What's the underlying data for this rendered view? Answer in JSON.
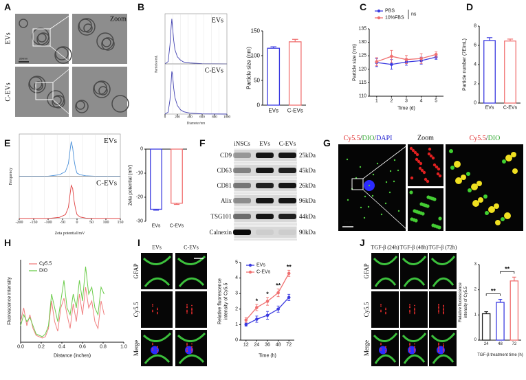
{
  "panel_labels": [
    "A",
    "B",
    "C",
    "D",
    "E",
    "F",
    "G",
    "H",
    "I",
    "J"
  ],
  "panel_a": {
    "row_labels": [
      "EVs",
      "C-EVs"
    ],
    "zoom_label": "Zoom",
    "scale_bar": "200nm"
  },
  "panel_f": {
    "columns": [
      "iNSCs",
      "EVs",
      "C-EVs"
    ],
    "rows": [
      {
        "protein": "CD9",
        "size": "25kDa"
      },
      {
        "protein": "CD63",
        "size": "45kDa"
      },
      {
        "protein": "CD81",
        "size": "26kDa"
      },
      {
        "protein": "Alix",
        "size": "96kDa"
      },
      {
        "protein": "TSG101",
        "size": "44kDa"
      },
      {
        "protein": "Calnexin",
        "size": "90kDa"
      }
    ]
  },
  "panel_g": {
    "title_parts": [
      {
        "text": "Cy5.5",
        "color": "#e02020"
      },
      {
        "text": "/",
        "color": "#111111"
      },
      {
        "text": "DIO",
        "color": "#2fa82f"
      },
      {
        "text": "/",
        "color": "#111111"
      },
      {
        "text": "DAPI",
        "color": "#2020d0"
      }
    ],
    "zoom_label": {
      "text": "Zoom",
      "color": "#c020c0"
    },
    "merge_parts": [
      {
        "text": "Cy5.5",
        "color": "#e02020"
      },
      {
        "text": "/",
        "color": "#111111"
      },
      {
        "text": "DIO",
        "color": "#2fa82f"
      }
    ],
    "scale_bar": "10um"
  },
  "panel_i": {
    "columns": [
      "EVs",
      "C-EVs"
    ],
    "rows": [
      {
        "text": "GFAP",
        "color": "#2fa82f"
      },
      {
        "text": "Cy5.5",
        "color": "#e02020"
      },
      {
        "text": "Merge",
        "color": "#c020c0"
      }
    ],
    "scale_bar": "10um"
  },
  "panel_j": {
    "columns": [
      "TGF-β (24h)",
      "TGF-β (48h)",
      "TGF-β (72h)"
    ],
    "rows": [
      {
        "text": "GFAP",
        "color": "#2fa82f"
      },
      {
        "text": "Cy5.5",
        "color": "#e02020"
      },
      {
        "text": "Merge",
        "color": "#c020c0"
      }
    ]
  },
  "chart_data": [
    {
      "type": "density",
      "ylabel": "Particles/mL",
      "xlabel": "Diameter/nm",
      "x": [
        0,
        50,
        80,
        100,
        110,
        120,
        140,
        160,
        200,
        250,
        300,
        400,
        600,
        1000
      ],
      "xlim": [
        0,
        1000
      ],
      "xticks": [
        0,
        200,
        400,
        600,
        800,
        1000
      ],
      "ylim": [
        0,
        10
      ],
      "series": [
        {
          "name": "EVs",
          "color": "#4040b0",
          "values": [
            0,
            0.5,
            4,
            8,
            9.5,
            8,
            5,
            3,
            1.5,
            0.8,
            0.4,
            0.2,
            0.05,
            0
          ]
        },
        {
          "name": "C-EVs",
          "color": "#4040b0",
          "values": [
            0,
            0.4,
            3,
            7,
            9,
            8.5,
            5.5,
            3.5,
            1.8,
            0.9,
            0.5,
            0.2,
            0.05,
            0
          ]
        }
      ]
    },
    {
      "type": "bar",
      "ylabel": "Particle size (nm)",
      "categories": [
        "EVs",
        "C-EVs"
      ],
      "values": [
        115,
        128
      ],
      "errors": [
        3,
        5
      ],
      "colors": [
        "#3a3ae0",
        "#f07070"
      ],
      "ylim": [
        0,
        150
      ],
      "yticks": [
        0,
        50,
        100,
        150
      ]
    },
    {
      "type": "line",
      "ylabel": "Particle size (nm)",
      "xlabel": "Time (d)",
      "x": [
        1,
        2,
        3,
        4,
        5
      ],
      "xlim": [
        0.5,
        5.5
      ],
      "xticks": [
        1,
        2,
        3,
        4,
        5
      ],
      "ylim": [
        110,
        135
      ],
      "yticks": [
        110,
        115,
        120,
        125,
        130,
        135
      ],
      "legend": true,
      "annotation": "ns",
      "series": [
        {
          "name": "PBS",
          "color": "#3a3ae0",
          "values": [
            122.5,
            121.8,
            122.7,
            123.2,
            124.5
          ],
          "errors": [
            1.5,
            1.8,
            1.2,
            1.3,
            0.8
          ]
        },
        {
          "name": "10%FBS",
          "color": "#f07070",
          "values": [
            122.8,
            124.8,
            123.6,
            124,
            125.5
          ],
          "errors": [
            1.5,
            2.2,
            1.5,
            1.8,
            1
          ]
        }
      ]
    },
    {
      "type": "bar",
      "ylabel": "Particle number (7E/mL)",
      "categories": [
        "EVs",
        "C-EVs"
      ],
      "values": [
        6.5,
        6.45
      ],
      "errors": [
        0.3,
        0.2
      ],
      "colors": [
        "#3a3ae0",
        "#f07070"
      ],
      "ylim": [
        0,
        8
      ],
      "yticks": [
        0,
        2,
        4,
        6,
        8
      ]
    },
    {
      "type": "density",
      "ylabel": "Frequency",
      "xlabel": "Zeta potential/mV",
      "x": [
        -200,
        -100,
        -60,
        -40,
        -30,
        -25,
        -20,
        -15,
        -10,
        -5,
        0,
        10,
        30,
        60,
        150
      ],
      "xlim": [
        -200,
        150
      ],
      "xticks": [
        -200,
        -150,
        -100,
        -50,
        0,
        50,
        100,
        150
      ],
      "ylim": [
        0,
        25
      ],
      "series": [
        {
          "name": "EVs",
          "color": "#4a90d9",
          "values": [
            0,
            0,
            1,
            3,
            8,
            15,
            22,
            18,
            10,
            5,
            2,
            1,
            0.3,
            0,
            0
          ]
        },
        {
          "name": "C-EVs",
          "color": "#e04040",
          "values": [
            0,
            0,
            0.8,
            2.5,
            7,
            14,
            21,
            19,
            11,
            6,
            2.5,
            1,
            0.3,
            0,
            0
          ]
        }
      ]
    },
    {
      "type": "bar",
      "ylabel": "Zeta potential (mV)",
      "categories": [
        "EVs",
        "C-EVs"
      ],
      "values": [
        -25,
        -22.5
      ],
      "errors": [
        0.4,
        0.5
      ],
      "colors": [
        "#3a3ae0",
        "#f07070"
      ],
      "ylim": [
        -30,
        0
      ],
      "yticks": [
        0,
        -10,
        -20,
        -30
      ]
    },
    {
      "type": "line",
      "ylabel": "Fluorescence intensity",
      "xlabel": "Distance (inches)",
      "x": [
        0,
        0.03,
        0.06,
        0.09,
        0.12,
        0.15,
        0.18,
        0.21,
        0.24,
        0.27,
        0.3,
        0.33,
        0.36,
        0.39,
        0.42,
        0.45,
        0.48,
        0.51,
        0.54,
        0.57,
        0.6,
        0.63,
        0.66,
        0.69,
        0.72,
        0.75,
        0.78,
        0.81
      ],
      "xlim": [
        0,
        1
      ],
      "xticks": [
        {
          "value": 0,
          "label": "0.0"
        },
        0.2,
        0.4,
        0.6,
        0.8,
        {
          "value": 1,
          "label": "1.0"
        }
      ],
      "ylim": [
        0,
        60
      ],
      "legend": true,
      "series": [
        {
          "name": "Cy5.5",
          "color": "#f08080",
          "values": [
            15,
            25,
            12,
            20,
            10,
            5,
            4,
            3,
            4,
            10,
            30,
            15,
            8,
            25,
            32,
            20,
            10,
            28,
            15,
            35,
            20,
            40,
            25,
            30,
            15,
            10,
            30,
            20
          ]
        },
        {
          "name": "DiO",
          "color": "#6bcc4a",
          "values": [
            12,
            20,
            15,
            18,
            12,
            6,
            5,
            4,
            6,
            12,
            35,
            25,
            15,
            30,
            45,
            25,
            20,
            35,
            25,
            45,
            30,
            55,
            35,
            40,
            25,
            20,
            40,
            35
          ]
        }
      ]
    },
    {
      "type": "line",
      "ylabel": [
        "Relative fluorescence",
        "intensity of Cy5.5"
      ],
      "xlabel": "Time (h)",
      "categories": [
        "12",
        "24",
        "36",
        "48",
        "72"
      ],
      "ylim": [
        0,
        5
      ],
      "yticks": [
        0,
        1,
        2,
        3,
        4,
        5
      ],
      "legend": true,
      "significance": [
        null,
        "*",
        "*",
        "**",
        "**"
      ],
      "series": [
        {
          "name": "EVs",
          "color": "#3a3ae0",
          "values": [
            1,
            1.35,
            1.6,
            2,
            2.75
          ],
          "errors": [
            0.1,
            0.2,
            0.25,
            0.2,
            0.2
          ]
        },
        {
          "name": "C-EVs",
          "color": "#f07070",
          "values": [
            1.3,
            2.1,
            2.5,
            3.05,
            4.3
          ],
          "errors": [
            0.15,
            0.2,
            0.25,
            0.25,
            0.2
          ]
        }
      ]
    },
    {
      "type": "bar",
      "ylabel": [
        "Relative fluorescence",
        "intensity of Cy5.5"
      ],
      "xlabel": "TGF-β treatment time (h)",
      "categories": [
        "24",
        "48",
        "72"
      ],
      "values": [
        1.05,
        1.5,
        2.35
      ],
      "errors": [
        0.08,
        0.12,
        0.15
      ],
      "colors": [
        "#222222",
        "#3a3ae0",
        "#f07070"
      ],
      "ylim": [
        0,
        3
      ],
      "yticks": [
        0,
        1,
        2,
        3
      ],
      "comparisons": [
        "**",
        "**"
      ]
    }
  ]
}
